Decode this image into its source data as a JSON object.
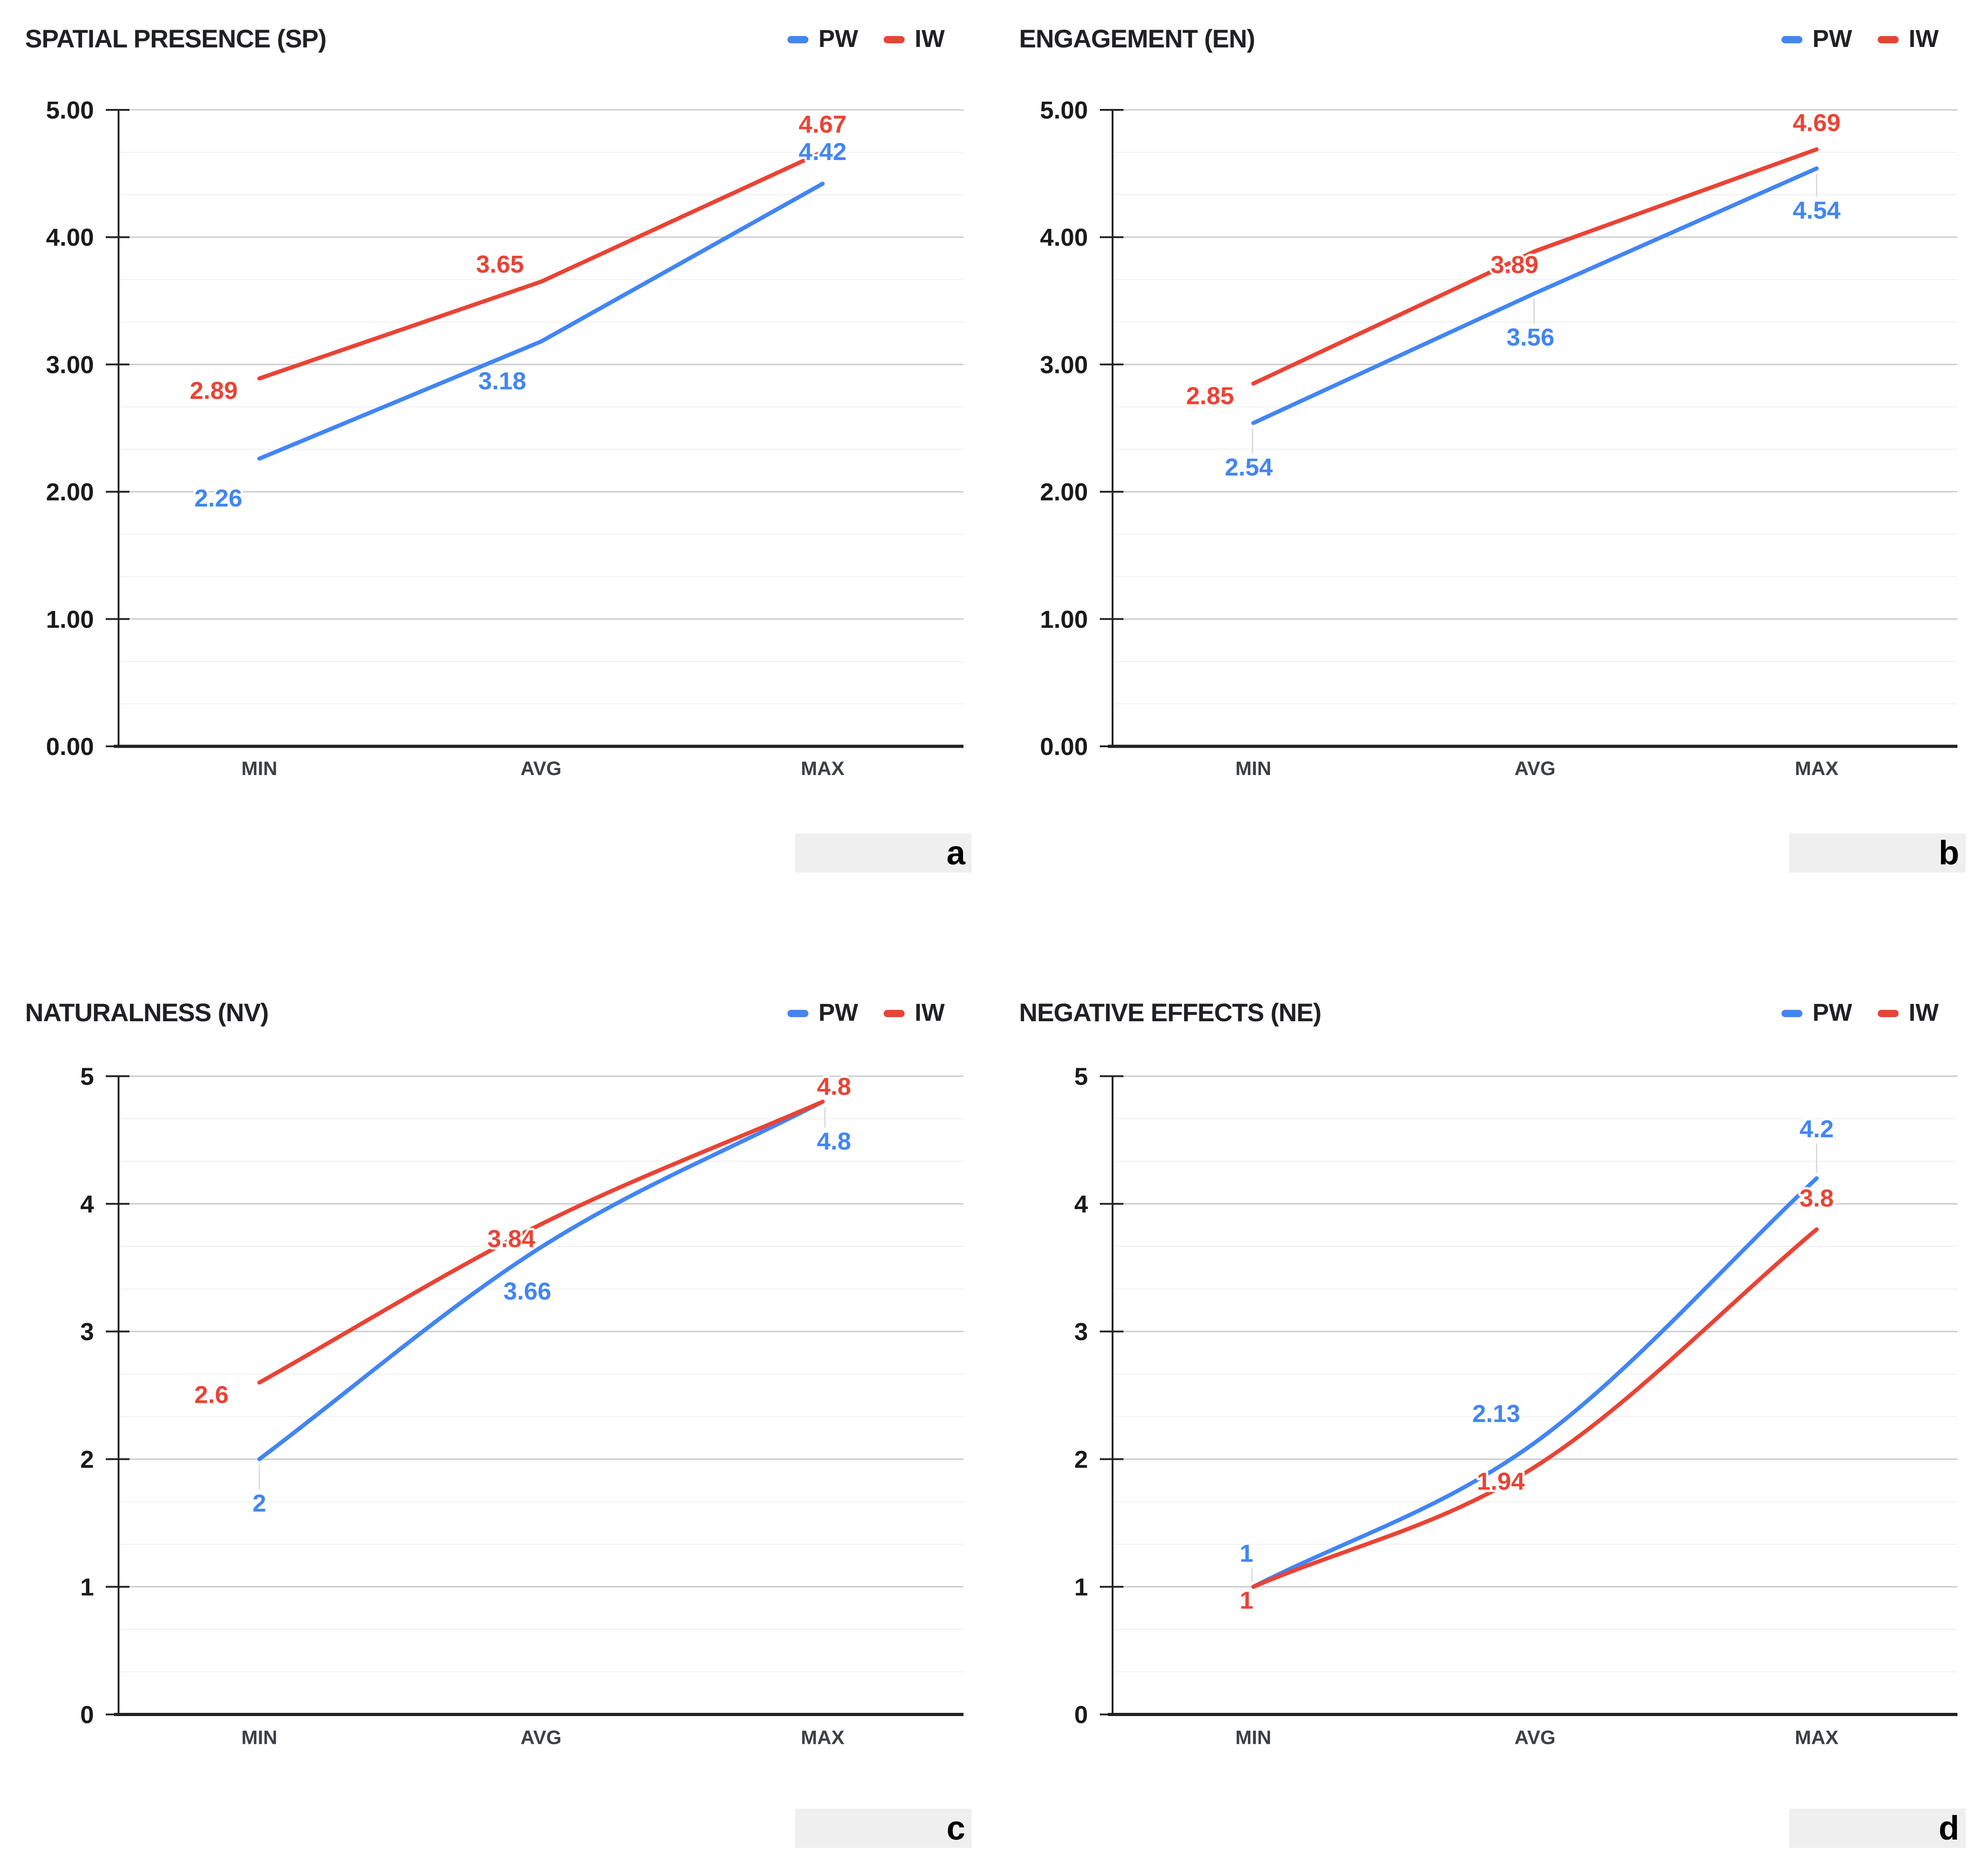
{
  "colors": {
    "pw": "#4285F4",
    "iw": "#EA4335",
    "background": "#ffffff",
    "title_text": "#202124",
    "y_tick_text": "#1a1a1a",
    "category_text": "#3c4043",
    "grid_major": "#cccccc",
    "grid_minor": "#f0f0f0",
    "axis": "#212121",
    "leader_line": "#dadada",
    "letter_box_bg": "#efefef",
    "letter_text": "#000000"
  },
  "legend": {
    "items": [
      "PW",
      "IW"
    ],
    "position": "top-right"
  },
  "chart_data": [
    {
      "id": "a",
      "panel_letter": "a",
      "type": "line",
      "line_shape": "straight",
      "title": "SPATIAL PRESENCE (SP)",
      "categories": [
        "MIN",
        "AVG",
        "MAX"
      ],
      "ylim": [
        0,
        5
      ],
      "grid": {
        "major_step": 1,
        "minor_step": 0.3333
      },
      "y_ticks": [
        "0.00",
        "1.00",
        "2.00",
        "3.00",
        "4.00",
        "5.00"
      ],
      "series": [
        {
          "name": "PW",
          "color_key": "pw",
          "values": [
            2.26,
            3.18,
            4.42
          ],
          "labels": [
            "2.26",
            "3.18",
            "4.42"
          ]
        },
        {
          "name": "IW",
          "color_key": "iw",
          "values": [
            2.89,
            3.65,
            4.67
          ],
          "labels": [
            "2.89",
            "3.65",
            "4.67"
          ]
        }
      ]
    },
    {
      "id": "b",
      "panel_letter": "b",
      "type": "line",
      "line_shape": "straight",
      "title": "ENGAGEMENT (EN)",
      "categories": [
        "MIN",
        "AVG",
        "MAX"
      ],
      "ylim": [
        0,
        5
      ],
      "grid": {
        "major_step": 1,
        "minor_step": 0.3333
      },
      "y_ticks": [
        "0.00",
        "1.00",
        "2.00",
        "3.00",
        "4.00",
        "5.00"
      ],
      "series": [
        {
          "name": "PW",
          "color_key": "pw",
          "values": [
            2.54,
            3.56,
            4.54
          ],
          "labels": [
            "2.54",
            "3.56",
            "4.54"
          ]
        },
        {
          "name": "IW",
          "color_key": "iw",
          "values": [
            2.85,
            3.89,
            4.69
          ],
          "labels": [
            "2.85",
            "3.89",
            "4.69"
          ]
        }
      ]
    },
    {
      "id": "c",
      "panel_letter": "c",
      "type": "line",
      "line_shape": "smooth",
      "title": "NATURALNESS (NV)",
      "categories": [
        "MIN",
        "AVG",
        "MAX"
      ],
      "ylim": [
        0,
        5
      ],
      "grid": {
        "major_step": 1,
        "minor_step": 0.3333
      },
      "y_ticks": [
        "0",
        "1",
        "2",
        "3",
        "4",
        "5"
      ],
      "series": [
        {
          "name": "PW",
          "color_key": "pw",
          "values": [
            2,
            3.66,
            4.8
          ],
          "labels": [
            "2",
            "3.66",
            "4.8"
          ]
        },
        {
          "name": "IW",
          "color_key": "iw",
          "values": [
            2.6,
            3.84,
            4.8
          ],
          "labels": [
            "2.6",
            "3.84",
            "4.8"
          ]
        }
      ]
    },
    {
      "id": "d",
      "panel_letter": "d",
      "type": "line",
      "line_shape": "smooth",
      "title": "NEGATIVE EFFECTS (NE)",
      "categories": [
        "MIN",
        "AVG",
        "MAX"
      ],
      "ylim": [
        0,
        5
      ],
      "grid": {
        "major_step": 1,
        "minor_step": 0.3333
      },
      "y_ticks": [
        "0",
        "1",
        "2",
        "3",
        "4",
        "5"
      ],
      "series": [
        {
          "name": "PW",
          "color_key": "pw",
          "values": [
            1,
            2.13,
            4.2
          ],
          "labels": [
            "1",
            "2.13",
            "4.2"
          ]
        },
        {
          "name": "IW",
          "color_key": "iw",
          "values": [
            1,
            1.94,
            3.8
          ],
          "labels": [
            "1",
            "1.94",
            "3.8"
          ]
        }
      ]
    }
  ]
}
